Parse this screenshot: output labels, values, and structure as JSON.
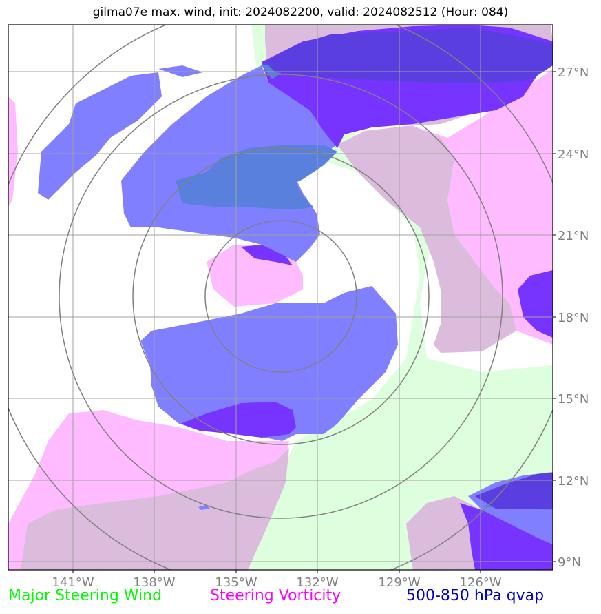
{
  "title": "gilma07e max. wind, init: 2024082200, valid: 2024082512 (Hour: 084)",
  "map": {
    "lon_labels": [
      "141°W",
      "138°W",
      "135°W",
      "132°W",
      "129°W",
      "126°W"
    ],
    "lat_labels": [
      "27°N",
      "24°N",
      "21°N",
      "18°N",
      "15°N",
      "12°N",
      "9°N"
    ],
    "label_color": "#808080"
  },
  "legend": [
    {
      "label": "Major Steering Wind",
      "color": "#00ff00"
    },
    {
      "label": "Steering Vorticity",
      "color": "#ff00ff"
    },
    {
      "label": "500-850 hPa qvap",
      "color": "#0000cc"
    }
  ],
  "colors": {
    "wind_fill": "#ddffdd",
    "vorticity_fill": "#ffbbff",
    "overlap_fill": "#dbbcdc",
    "qvap_fill": "#7f7fff",
    "qvap_dark_fill": "#7733ff",
    "qvap_overlap_fill": "#5a80dd",
    "qvap_deep_fill": "#5a3ee0",
    "grid": "#a0a0a0",
    "rings": "#808080"
  }
}
